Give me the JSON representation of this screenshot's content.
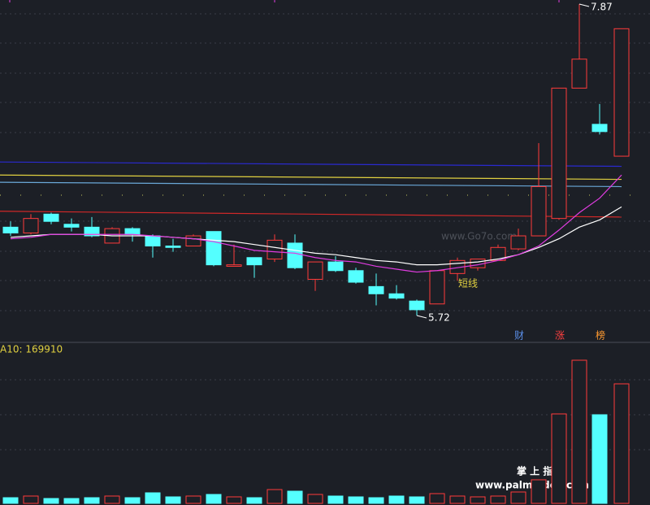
{
  "chart_data": {
    "type": "candlestick",
    "up_color": "#ff3b3b",
    "down_color": "#54ffff",
    "open": [
      6.33,
      6.29,
      6.42,
      6.35,
      6.33,
      6.22,
      6.32,
      6.27,
      6.2,
      6.2,
      6.3,
      6.06,
      6.12,
      6.11,
      6.22,
      5.97,
      6.09,
      6.03,
      5.92,
      5.87,
      5.82,
      5.8,
      6.01,
      6.05,
      6.1,
      6.18,
      6.27,
      6.39,
      7.29,
      7.04,
      6.82
    ],
    "high": [
      6.37,
      6.42,
      6.43,
      6.39,
      6.4,
      6.33,
      6.33,
      6.28,
      6.25,
      6.28,
      6.3,
      6.21,
      6.12,
      6.28,
      6.28,
      6.09,
      6.13,
      6.05,
      6.01,
      5.93,
      5.83,
      6.03,
      6.12,
      6.11,
      6.21,
      6.32,
      6.91,
      7.29,
      7.87,
      7.18,
      7.7
    ],
    "low": [
      6.27,
      6.28,
      6.35,
      6.3,
      6.26,
      6.22,
      6.23,
      6.12,
      6.16,
      6.2,
      6.06,
      6.06,
      5.98,
      6.09,
      6.04,
      5.89,
      6.02,
      5.94,
      5.79,
      5.83,
      5.72,
      5.8,
      5.96,
      6.03,
      6.1,
      6.17,
      6.27,
      6.38,
      7.29,
      6.97,
      6.82
    ],
    "close": [
      6.29,
      6.39,
      6.37,
      6.33,
      6.27,
      6.32,
      6.28,
      6.2,
      6.19,
      6.27,
      6.07,
      6.07,
      6.07,
      6.24,
      6.05,
      6.09,
      6.03,
      5.95,
      5.87,
      5.84,
      5.76,
      6.03,
      6.1,
      6.11,
      6.19,
      6.27,
      6.61,
      7.29,
      7.49,
      6.99,
      7.7
    ],
    "volume": [
      19500,
      25100,
      16700,
      16700,
      19500,
      25100,
      19500,
      36200,
      22300,
      25100,
      30600,
      22300,
      19500,
      47300,
      41800,
      30600,
      25100,
      22300,
      19500,
      25100,
      22300,
      33400,
      25100,
      22300,
      25100,
      39000,
      80800,
      306400,
      490200,
      303600,
      409400
    ],
    "lines": [
      {
        "color": "#ffffff",
        "values": [
          6.26,
          6.27,
          6.28,
          6.28,
          6.28,
          6.27,
          6.27,
          6.27,
          6.26,
          6.25,
          6.24,
          6.23,
          6.21,
          6.19,
          6.17,
          6.15,
          6.14,
          6.12,
          6.1,
          6.09,
          6.07,
          6.07,
          6.08,
          6.09,
          6.11,
          6.14,
          6.19,
          6.25,
          6.33,
          6.38,
          6.47
        ]
      },
      {
        "color": "#e03ce0",
        "values": [
          6.25,
          6.26,
          6.28,
          6.28,
          6.28,
          6.28,
          6.28,
          6.27,
          6.26,
          6.25,
          6.23,
          6.2,
          6.17,
          6.16,
          6.15,
          6.12,
          6.1,
          6.09,
          6.06,
          6.04,
          6.02,
          6.03,
          6.05,
          6.07,
          6.1,
          6.14,
          6.2,
          6.31,
          6.43,
          6.53,
          6.69
        ]
      }
    ],
    "levels": [
      {
        "color": "#2a2ad0",
        "start": 6.78,
        "end": 6.75
      },
      {
        "color": "#e0d040",
        "start": 6.69,
        "end": 6.66
      },
      {
        "color": "#6aa8d8",
        "start": 6.64,
        "end": 6.61
      },
      {
        "color": "#d02828",
        "start": 6.44,
        "end": 6.4
      }
    ],
    "max_label": 7.87,
    "min_label": 5.72,
    "annotation": "短线",
    "tags": [
      "财",
      "涨",
      "榜"
    ],
    "volume_label": "A10: 169910",
    "watermarks": [
      "www.Go7o.com",
      "掌 上 指 标",
      "www.palmindex.com"
    ]
  }
}
